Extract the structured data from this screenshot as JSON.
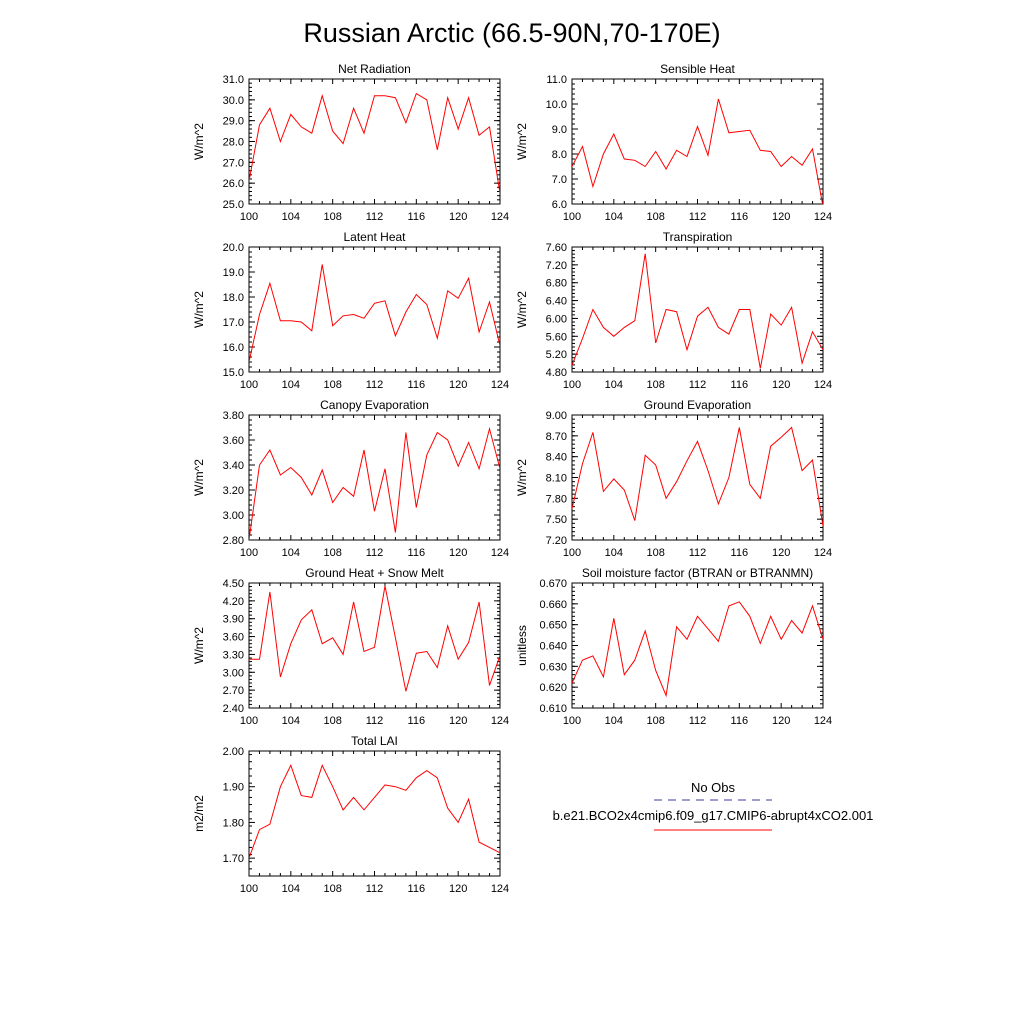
{
  "title": "Russian Arctic (66.5-90N,70-170E)",
  "colors": {
    "model": "#ff0000",
    "obs": "#3a3aa0",
    "axis": "#000000"
  },
  "legend": {
    "obs_label": "No Obs",
    "model_label": "b.e21.BCO2x4cmip6.f09_g17.CMIP6-abrupt4xCO2.001"
  },
  "chart_data": [
    {
      "type": "line",
      "title": "Net Radiation",
      "ylabel": "W/m^2",
      "xlim": [
        100,
        124
      ],
      "xticks": [
        100,
        104,
        108,
        112,
        116,
        120,
        124
      ],
      "ylim": [
        25.0,
        31.0
      ],
      "ytick_step": 1.0,
      "ydec": 1,
      "x": [
        100,
        101,
        102,
        103,
        104,
        105,
        106,
        107,
        108,
        109,
        110,
        111,
        112,
        113,
        114,
        115,
        116,
        117,
        118,
        119,
        120,
        121,
        122,
        123,
        124
      ],
      "series": [
        {
          "values": [
            26.1,
            28.8,
            29.6,
            28.0,
            29.3,
            28.7,
            28.4,
            30.2,
            28.5,
            27.9,
            29.6,
            28.4,
            30.2,
            30.2,
            30.1,
            28.9,
            30.3,
            30.0,
            27.6,
            30.1,
            28.6,
            30.1,
            28.3,
            28.7,
            25.5
          ]
        }
      ]
    },
    {
      "type": "line",
      "title": "Sensible Heat",
      "ylabel": "W/m^2",
      "xlim": [
        100,
        124
      ],
      "xticks": [
        100,
        104,
        108,
        112,
        116,
        120,
        124
      ],
      "ylim": [
        6.0,
        11.0
      ],
      "ytick_step": 1.0,
      "ydec": 1,
      "x": [
        100,
        101,
        102,
        103,
        104,
        105,
        106,
        107,
        108,
        109,
        110,
        111,
        112,
        113,
        114,
        115,
        116,
        117,
        118,
        119,
        120,
        121,
        122,
        123,
        124
      ],
      "series": [
        {
          "values": [
            7.5,
            8.3,
            6.7,
            8.0,
            8.8,
            7.8,
            7.75,
            7.5,
            8.1,
            7.4,
            8.15,
            7.9,
            9.1,
            7.95,
            10.2,
            8.85,
            8.9,
            8.95,
            8.15,
            8.1,
            7.5,
            7.9,
            7.55,
            8.2,
            5.9
          ]
        }
      ]
    },
    {
      "type": "line",
      "title": "Latent Heat",
      "ylabel": "W/m^2",
      "xlim": [
        100,
        124
      ],
      "xticks": [
        100,
        104,
        108,
        112,
        116,
        120,
        124
      ],
      "ylim": [
        15.0,
        20.0
      ],
      "ytick_step": 1.0,
      "ydec": 1,
      "x": [
        100,
        101,
        102,
        103,
        104,
        105,
        106,
        107,
        108,
        109,
        110,
        111,
        112,
        113,
        114,
        115,
        116,
        117,
        118,
        119,
        120,
        121,
        122,
        123,
        124
      ],
      "series": [
        {
          "values": [
            15.4,
            17.3,
            18.55,
            17.05,
            17.05,
            17.0,
            16.65,
            19.3,
            16.85,
            17.25,
            17.3,
            17.15,
            17.75,
            17.85,
            16.45,
            17.4,
            18.1,
            17.7,
            16.35,
            18.25,
            17.95,
            18.75,
            16.6,
            17.8,
            16.05
          ]
        }
      ]
    },
    {
      "type": "line",
      "title": "Transpiration",
      "ylabel": "W/m^2",
      "xlim": [
        100,
        124
      ],
      "xticks": [
        100,
        104,
        108,
        112,
        116,
        120,
        124
      ],
      "ylim": [
        4.8,
        7.6
      ],
      "ytick_step": 0.4,
      "ydec": 2,
      "x": [
        100,
        101,
        102,
        103,
        104,
        105,
        106,
        107,
        108,
        109,
        110,
        111,
        112,
        113,
        114,
        115,
        116,
        117,
        118,
        119,
        120,
        121,
        122,
        123,
        124
      ],
      "series": [
        {
          "values": [
            4.95,
            5.55,
            6.2,
            5.8,
            5.6,
            5.8,
            5.95,
            7.45,
            5.45,
            6.2,
            6.15,
            5.3,
            6.05,
            6.25,
            5.8,
            5.65,
            6.2,
            6.2,
            4.88,
            6.1,
            5.85,
            6.25,
            5.0,
            5.7,
            5.3
          ]
        }
      ]
    },
    {
      "type": "line",
      "title": "Canopy Evaporation",
      "ylabel": "W/m^2",
      "xlim": [
        100,
        124
      ],
      "xticks": [
        100,
        104,
        108,
        112,
        116,
        120,
        124
      ],
      "ylim": [
        2.8,
        3.8
      ],
      "ytick_step": 0.2,
      "ydec": 2,
      "x": [
        100,
        101,
        102,
        103,
        104,
        105,
        106,
        107,
        108,
        109,
        110,
        111,
        112,
        113,
        114,
        115,
        116,
        117,
        118,
        119,
        120,
        121,
        122,
        123,
        124
      ],
      "series": [
        {
          "values": [
            2.8,
            3.4,
            3.52,
            3.32,
            3.38,
            3.3,
            3.16,
            3.36,
            3.1,
            3.22,
            3.15,
            3.52,
            3.03,
            3.37,
            2.86,
            3.66,
            3.06,
            3.48,
            3.66,
            3.6,
            3.39,
            3.58,
            3.37,
            3.69,
            3.37
          ]
        }
      ]
    },
    {
      "type": "line",
      "title": "Ground Evaporation",
      "ylabel": "W/m^2",
      "xlim": [
        100,
        124
      ],
      "xticks": [
        100,
        104,
        108,
        112,
        116,
        120,
        124
      ],
      "ylim": [
        7.2,
        9.0
      ],
      "ytick_step": 0.3,
      "ydec": 2,
      "x": [
        100,
        101,
        102,
        103,
        104,
        105,
        106,
        107,
        108,
        109,
        110,
        111,
        112,
        113,
        114,
        115,
        116,
        117,
        118,
        119,
        120,
        121,
        122,
        123,
        124
      ],
      "series": [
        {
          "values": [
            7.65,
            8.3,
            8.75,
            7.9,
            8.08,
            7.92,
            7.48,
            8.42,
            8.28,
            7.8,
            8.04,
            8.34,
            8.62,
            8.2,
            7.72,
            8.1,
            8.82,
            8.0,
            7.8,
            8.55,
            8.68,
            8.82,
            8.2,
            8.35,
            7.4
          ]
        }
      ]
    },
    {
      "type": "line",
      "title": "Ground Heat + Snow Melt",
      "ylabel": "W/m^2",
      "xlim": [
        100,
        124
      ],
      "xticks": [
        100,
        104,
        108,
        112,
        116,
        120,
        124
      ],
      "ylim": [
        2.4,
        4.5
      ],
      "ytick_step": 0.3,
      "ydec": 2,
      "x": [
        100,
        101,
        102,
        103,
        104,
        105,
        106,
        107,
        108,
        109,
        110,
        111,
        112,
        113,
        114,
        115,
        116,
        117,
        118,
        119,
        120,
        121,
        122,
        123,
        124
      ],
      "series": [
        {
          "values": [
            3.22,
            3.22,
            4.35,
            2.92,
            3.48,
            3.88,
            4.05,
            3.48,
            3.58,
            3.3,
            4.18,
            3.35,
            3.42,
            4.45,
            3.58,
            2.68,
            3.32,
            3.35,
            3.08,
            3.78,
            3.22,
            3.5,
            4.18,
            2.78,
            3.28
          ]
        }
      ]
    },
    {
      "type": "line",
      "title": "Soil moisture factor (BTRAN or BTRANMN)",
      "ylabel": "unitless",
      "xlim": [
        100,
        124
      ],
      "xticks": [
        100,
        104,
        108,
        112,
        116,
        120,
        124
      ],
      "ylim": [
        0.61,
        0.67
      ],
      "ytick_step": 0.01,
      "ydec": 3,
      "x": [
        100,
        101,
        102,
        103,
        104,
        105,
        106,
        107,
        108,
        109,
        110,
        111,
        112,
        113,
        114,
        115,
        116,
        117,
        118,
        119,
        120,
        121,
        122,
        123,
        124
      ],
      "series": [
        {
          "values": [
            0.622,
            0.633,
            0.635,
            0.625,
            0.653,
            0.626,
            0.633,
            0.647,
            0.628,
            0.616,
            0.649,
            0.643,
            0.654,
            0.648,
            0.642,
            0.659,
            0.661,
            0.654,
            0.641,
            0.654,
            0.643,
            0.652,
            0.646,
            0.659,
            0.643
          ]
        }
      ]
    },
    {
      "type": "line",
      "title": "Total LAI",
      "ylabel": "m2/m2",
      "xlim": [
        100,
        124
      ],
      "xticks": [
        100,
        104,
        108,
        112,
        116,
        120,
        124
      ],
      "ylim": [
        1.65,
        2.0
      ],
      "ytick_step": 0.1,
      "ydec": 2,
      "ytick_start": 1.7,
      "x": [
        100,
        101,
        102,
        103,
        104,
        105,
        106,
        107,
        108,
        109,
        110,
        111,
        112,
        113,
        114,
        115,
        116,
        117,
        118,
        119,
        120,
        121,
        122,
        123,
        124
      ],
      "series": [
        {
          "values": [
            1.7,
            1.78,
            1.795,
            1.9,
            1.96,
            1.875,
            1.87,
            1.96,
            1.9,
            1.835,
            1.87,
            1.835,
            1.87,
            1.905,
            1.9,
            1.89,
            1.925,
            1.945,
            1.925,
            1.84,
            1.8,
            1.865,
            1.745,
            1.73,
            1.715
          ]
        }
      ]
    }
  ]
}
